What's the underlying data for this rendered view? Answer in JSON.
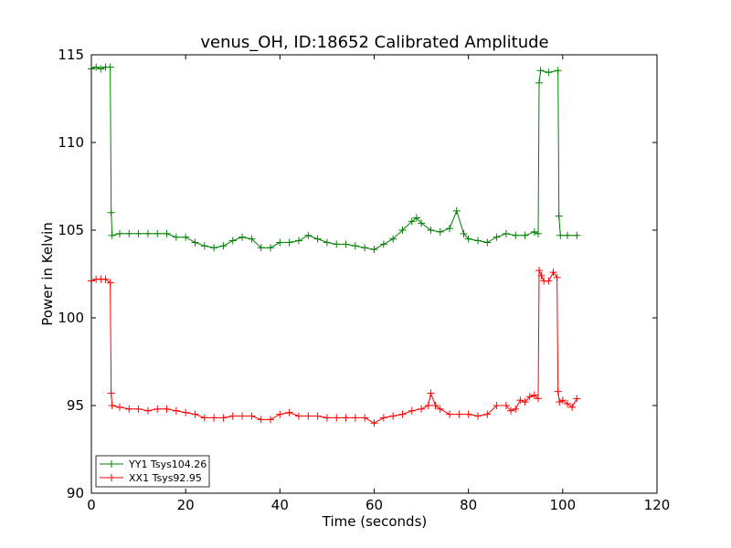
{
  "chart_data": {
    "type": "line",
    "title": "venus_OH, ID:18652 Calibrated Amplitude",
    "xlabel": "Time (seconds)",
    "ylabel": "Power in Kelvin",
    "xlim": [
      0,
      120
    ],
    "ylim": [
      90,
      115
    ],
    "xticks": [
      "0",
      "20",
      "40",
      "60",
      "80",
      "100",
      "120"
    ],
    "yticks": [
      "90",
      "95",
      "100",
      "105",
      "110",
      "115"
    ],
    "grid": false,
    "legend_position": "lower-left",
    "series": [
      {
        "name": "YY1 Tsys104.26",
        "color": "#008000",
        "marker": "plus",
        "points": [
          [
            0,
            114.2
          ],
          [
            1,
            114.3
          ],
          [
            2,
            114.2
          ],
          [
            3,
            114.3
          ],
          [
            4,
            114.3
          ],
          [
            4.2,
            106.0
          ],
          [
            4.4,
            104.7
          ],
          [
            6,
            104.8
          ],
          [
            8,
            104.8
          ],
          [
            10,
            104.8
          ],
          [
            12,
            104.8
          ],
          [
            14,
            104.8
          ],
          [
            16,
            104.8
          ],
          [
            18,
            104.6
          ],
          [
            20,
            104.6
          ],
          [
            22,
            104.3
          ],
          [
            24,
            104.1
          ],
          [
            26,
            104.0
          ],
          [
            28,
            104.1
          ],
          [
            30,
            104.4
          ],
          [
            32,
            104.6
          ],
          [
            34,
            104.5
          ],
          [
            36,
            104.0
          ],
          [
            38,
            104.0
          ],
          [
            40,
            104.3
          ],
          [
            42,
            104.3
          ],
          [
            44,
            104.4
          ],
          [
            46,
            104.7
          ],
          [
            48,
            104.5
          ],
          [
            50,
            104.3
          ],
          [
            52,
            104.2
          ],
          [
            54,
            104.2
          ],
          [
            56,
            104.1
          ],
          [
            58,
            104.0
          ],
          [
            60,
            103.9
          ],
          [
            62,
            104.2
          ],
          [
            64,
            104.5
          ],
          [
            66,
            105.0
          ],
          [
            68,
            105.5
          ],
          [
            69,
            105.7
          ],
          [
            70,
            105.4
          ],
          [
            72,
            105.0
          ],
          [
            74,
            104.9
          ],
          [
            76,
            105.1
          ],
          [
            77.5,
            106.1
          ],
          [
            79,
            104.8
          ],
          [
            80,
            104.5
          ],
          [
            82,
            104.4
          ],
          [
            84,
            104.3
          ],
          [
            86,
            104.6
          ],
          [
            88,
            104.8
          ],
          [
            90,
            104.7
          ],
          [
            92,
            104.7
          ],
          [
            94,
            104.9
          ],
          [
            94.8,
            104.8
          ],
          [
            95,
            113.4
          ],
          [
            95.3,
            114.1
          ],
          [
            97,
            114.0
          ],
          [
            99,
            114.1
          ],
          [
            99.2,
            105.8
          ],
          [
            99.5,
            104.7
          ],
          [
            101,
            104.7
          ],
          [
            103,
            104.7
          ]
        ]
      },
      {
        "name": "XX1 Tsys92.95",
        "color": "#ff0000",
        "marker": "plus",
        "points": [
          [
            0,
            102.1
          ],
          [
            1,
            102.2
          ],
          [
            2,
            102.2
          ],
          [
            3,
            102.2
          ],
          [
            4,
            102.0
          ],
          [
            4.2,
            95.7
          ],
          [
            4.4,
            95.0
          ],
          [
            6,
            94.9
          ],
          [
            8,
            94.8
          ],
          [
            10,
            94.8
          ],
          [
            12,
            94.7
          ],
          [
            14,
            94.8
          ],
          [
            16,
            94.8
          ],
          [
            18,
            94.7
          ],
          [
            20,
            94.6
          ],
          [
            22,
            94.5
          ],
          [
            24,
            94.3
          ],
          [
            26,
            94.3
          ],
          [
            28,
            94.3
          ],
          [
            30,
            94.4
          ],
          [
            32,
            94.4
          ],
          [
            34,
            94.4
          ],
          [
            36,
            94.2
          ],
          [
            38,
            94.2
          ],
          [
            40,
            94.5
          ],
          [
            42,
            94.6
          ],
          [
            44,
            94.4
          ],
          [
            46,
            94.4
          ],
          [
            48,
            94.4
          ],
          [
            50,
            94.3
          ],
          [
            52,
            94.3
          ],
          [
            54,
            94.3
          ],
          [
            56,
            94.3
          ],
          [
            58,
            94.3
          ],
          [
            60,
            94.0
          ],
          [
            62,
            94.3
          ],
          [
            64,
            94.4
          ],
          [
            66,
            94.5
          ],
          [
            68,
            94.7
          ],
          [
            70,
            94.8
          ],
          [
            71.5,
            95.0
          ],
          [
            72,
            95.7
          ],
          [
            73,
            95.0
          ],
          [
            74,
            94.8
          ],
          [
            76,
            94.5
          ],
          [
            78,
            94.5
          ],
          [
            80,
            94.5
          ],
          [
            82,
            94.4
          ],
          [
            84,
            94.5
          ],
          [
            86,
            95.0
          ],
          [
            88,
            95.0
          ],
          [
            89,
            94.7
          ],
          [
            90,
            94.8
          ],
          [
            91,
            95.3
          ],
          [
            92,
            95.2
          ],
          [
            93,
            95.5
          ],
          [
            94,
            95.6
          ],
          [
            94.8,
            95.4
          ],
          [
            95,
            102.7
          ],
          [
            95.5,
            102.4
          ],
          [
            96,
            102.1
          ],
          [
            97,
            102.1
          ],
          [
            98,
            102.6
          ],
          [
            98.8,
            102.3
          ],
          [
            99,
            95.8
          ],
          [
            99.3,
            95.2
          ],
          [
            100,
            95.3
          ],
          [
            101,
            95.1
          ],
          [
            102,
            94.9
          ],
          [
            103,
            95.4
          ]
        ]
      }
    ]
  }
}
